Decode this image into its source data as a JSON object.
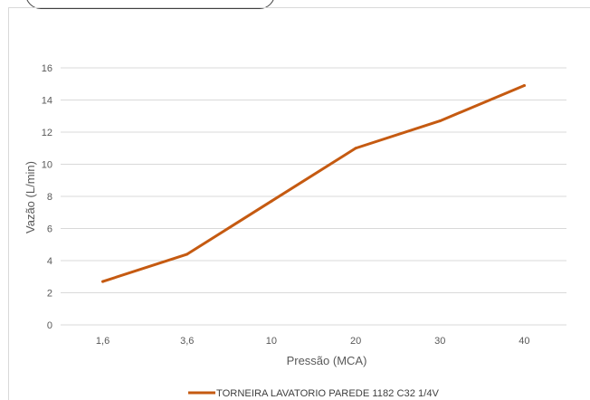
{
  "chart_data": {
    "type": "line",
    "categories": [
      "1,6",
      "3,6",
      "10",
      "20",
      "30",
      "40"
    ],
    "series": [
      {
        "name": "TORNEIRA LAVATORIO PAREDE 1182 C32 1/4V",
        "values": [
          2.7,
          4.4,
          7.7,
          11.0,
          12.7,
          14.9
        ]
      }
    ],
    "title": "",
    "xlabel": "Pressão (MCA)",
    "ylabel": "Vazão (L/min)",
    "ylim": [
      0,
      16
    ],
    "yticks": [
      0,
      2,
      4,
      6,
      8,
      10,
      12,
      14,
      16
    ],
    "grid": true,
    "legend": "bottom",
    "colors": {
      "series": "#c55a11",
      "grid": "#d9d9d9",
      "axis_text": "#595959"
    }
  }
}
